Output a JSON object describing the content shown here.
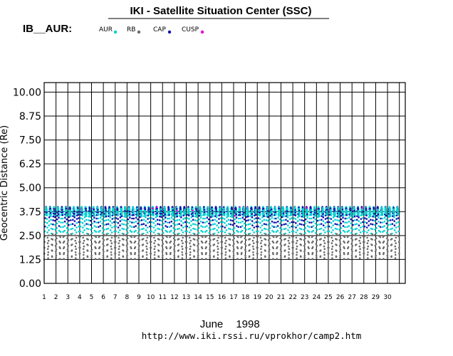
{
  "header": {
    "title": "IKI - Satellite Situation Center (SSC)",
    "panel_label": "IB__AUR:",
    "footer_url": "http://www.iki.rssi.ru/vprokhor/camp2.htm"
  },
  "chart_data": {
    "type": "scatter",
    "title": "IKI - Satellite Situation Center (SSC)",
    "ylabel": "Geocentric Distance (Re)",
    "xlabel_month": "June",
    "xlabel_year": "1998",
    "ylim": [
      0,
      10.5
    ],
    "xlim": [
      1,
      31.5
    ],
    "yticks": [
      "10.00",
      "8.75",
      "7.50",
      "6.25",
      "5.00",
      "3.75",
      "2.50",
      "1.25",
      "0.00"
    ],
    "ytick_values": [
      10.0,
      8.75,
      7.5,
      6.25,
      5.0,
      3.75,
      2.5,
      1.25,
      0.0
    ],
    "xticks": [
      "1",
      "2",
      "3",
      "4",
      "5",
      "6",
      "7",
      "8",
      "9",
      "10",
      "11",
      "12",
      "13",
      "14",
      "15",
      "16",
      "17",
      "18",
      "19",
      "20",
      "21",
      "22",
      "23",
      "24",
      "25",
      "26",
      "27",
      "28",
      "29",
      "30"
    ],
    "grid": true,
    "legend_placement": "top",
    "series": [
      {
        "name": "AUR",
        "color": "#00d0d0",
        "range": [
          2.5,
          4.0
        ]
      },
      {
        "name": "RB",
        "color": "#6a6a6a",
        "range": [
          1.25,
          2.6
        ]
      },
      {
        "name": "CAP",
        "color": "#1010b0",
        "range": [
          2.9,
          3.9
        ]
      },
      {
        "name": "CUSP",
        "color": "#e000e0",
        "range": [
          3.5,
          3.9
        ]
      }
    ],
    "orbits_per_day": 3
  }
}
